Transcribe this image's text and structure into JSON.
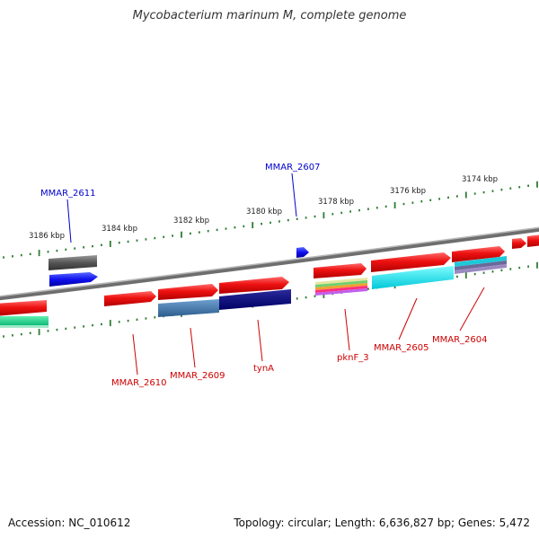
{
  "title": "Mycobacterium marinum M, complete genome",
  "footer": {
    "accession": "Accession: NC_010612",
    "stats": "Topology: circular; Length: 6,636,827 bp; Genes: 5,472"
  },
  "colors": {
    "backbone": "#8a8a8a",
    "forward_gene": "#e8000b",
    "label_forward": "#cc0000",
    "label_reverse": "#0000cc",
    "tick": "#2e7d32"
  },
  "ticks": [
    "3186 kbp",
    "3184 kbp",
    "3182 kbp",
    "3180 kbp",
    "3178 kbp",
    "3176 kbp",
    "3174 kbp"
  ],
  "gene_labels": {
    "mmar_2611": "MMAR_2611",
    "mmar_2607": "MMAR_2607",
    "mmar_2610": "MMAR_2610",
    "mmar_2609": "MMAR_2609",
    "tyna": "tynA",
    "pknf_3": "pknF_3",
    "mmar_2605": "MMAR_2605",
    "mmar_2604": "MMAR_2604"
  }
}
